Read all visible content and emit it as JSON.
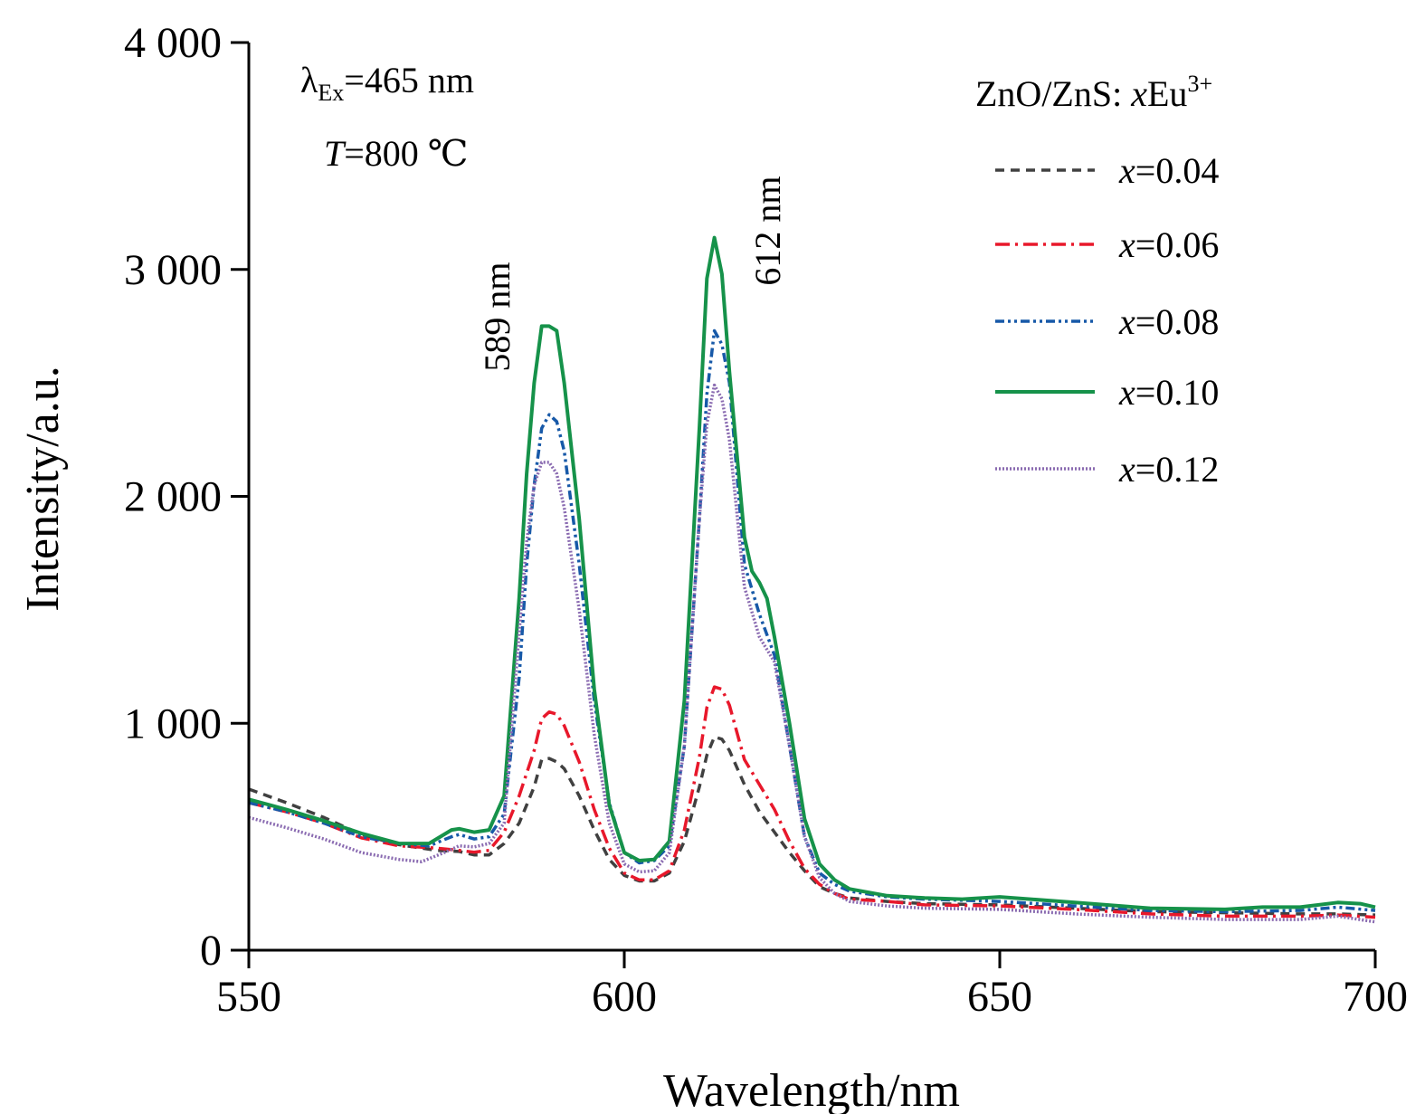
{
  "chart_data": {
    "type": "line",
    "xlabel": "Wavelength/nm",
    "ylabel": "Intensity/a.u.",
    "xlim": [
      550,
      700
    ],
    "ylim": [
      0,
      4000
    ],
    "x_ticks": [
      "550",
      "600",
      "650",
      "700"
    ],
    "y_ticks": [
      "0",
      "1 000",
      "2 000",
      "3 000",
      "4 000"
    ],
    "grid": false,
    "legend": {
      "title": "ZnO/ZnS: xEu",
      "title_sup": "3+",
      "position": "top-right"
    },
    "annotations": {
      "excitation": {
        "lambda": "λ",
        "sub": "Ex",
        "text": "=465 nm"
      },
      "temperature": {
        "symbol": "T",
        "text": "=800 ℃"
      },
      "peak1": "589 nm",
      "peak2": "612 nm"
    },
    "series": [
      {
        "name": "x=0.04",
        "prefix": "x",
        "value_label": "=0.04",
        "color": "#404040",
        "dash": "10,7",
        "points": [
          [
            550,
            710
          ],
          [
            555,
            650
          ],
          [
            560,
            585
          ],
          [
            565,
            510
          ],
          [
            570,
            465
          ],
          [
            575,
            440
          ],
          [
            578,
            435
          ],
          [
            580,
            420
          ],
          [
            582,
            420
          ],
          [
            584,
            470
          ],
          [
            586,
            560
          ],
          [
            588,
            720
          ],
          [
            589,
            840
          ],
          [
            590,
            845
          ],
          [
            591,
            830
          ],
          [
            592,
            800
          ],
          [
            594,
            680
          ],
          [
            596,
            530
          ],
          [
            598,
            400
          ],
          [
            600,
            330
          ],
          [
            602,
            305
          ],
          [
            604,
            305
          ],
          [
            606,
            340
          ],
          [
            608,
            480
          ],
          [
            610,
            720
          ],
          [
            611,
            860
          ],
          [
            612,
            940
          ],
          [
            613,
            930
          ],
          [
            614,
            880
          ],
          [
            616,
            730
          ],
          [
            618,
            610
          ],
          [
            620,
            520
          ],
          [
            622,
            430
          ],
          [
            624,
            350
          ],
          [
            626,
            280
          ],
          [
            628,
            250
          ],
          [
            630,
            230
          ],
          [
            635,
            215
          ],
          [
            640,
            205
          ],
          [
            650,
            200
          ],
          [
            660,
            185
          ],
          [
            670,
            170
          ],
          [
            680,
            165
          ],
          [
            690,
            160
          ],
          [
            695,
            160
          ],
          [
            700,
            155
          ]
        ]
      },
      {
        "name": "x=0.06",
        "prefix": "x",
        "value_label": "=0.06",
        "color": "#e8182b",
        "dash": "16,6,3,6",
        "points": [
          [
            550,
            650
          ],
          [
            555,
            610
          ],
          [
            560,
            560
          ],
          [
            565,
            495
          ],
          [
            570,
            460
          ],
          [
            575,
            450
          ],
          [
            578,
            440
          ],
          [
            580,
            432
          ],
          [
            582,
            440
          ],
          [
            584,
            520
          ],
          [
            586,
            680
          ],
          [
            588,
            880
          ],
          [
            589,
            1020
          ],
          [
            590,
            1050
          ],
          [
            591,
            1040
          ],
          [
            592,
            990
          ],
          [
            594,
            830
          ],
          [
            596,
            620
          ],
          [
            598,
            450
          ],
          [
            600,
            340
          ],
          [
            602,
            310
          ],
          [
            604,
            310
          ],
          [
            606,
            350
          ],
          [
            608,
            530
          ],
          [
            610,
            850
          ],
          [
            611,
            1070
          ],
          [
            612,
            1160
          ],
          [
            613,
            1150
          ],
          [
            614,
            1080
          ],
          [
            616,
            840
          ],
          [
            618,
            730
          ],
          [
            620,
            620
          ],
          [
            622,
            480
          ],
          [
            624,
            360
          ],
          [
            626,
            290
          ],
          [
            628,
            250
          ],
          [
            630,
            225
          ],
          [
            635,
            215
          ],
          [
            640,
            200
          ],
          [
            650,
            195
          ],
          [
            660,
            180
          ],
          [
            670,
            160
          ],
          [
            680,
            150
          ],
          [
            690,
            150
          ],
          [
            695,
            155
          ],
          [
            700,
            145
          ]
        ]
      },
      {
        "name": "x=0.08",
        "prefix": "x",
        "value_label": "=0.08",
        "color": "#1759a8",
        "dash": "10,4,3,4,3,4",
        "points": [
          [
            550,
            650
          ],
          [
            555,
            610
          ],
          [
            560,
            560
          ],
          [
            565,
            500
          ],
          [
            570,
            470
          ],
          [
            574,
            460
          ],
          [
            577,
            500
          ],
          [
            578,
            510
          ],
          [
            580,
            490
          ],
          [
            582,
            500
          ],
          [
            584,
            600
          ],
          [
            586,
            1200
          ],
          [
            587,
            1700
          ],
          [
            588,
            2050
          ],
          [
            589,
            2300
          ],
          [
            590,
            2360
          ],
          [
            591,
            2330
          ],
          [
            592,
            2200
          ],
          [
            594,
            1700
          ],
          [
            596,
            1100
          ],
          [
            598,
            650
          ],
          [
            600,
            430
          ],
          [
            602,
            385
          ],
          [
            604,
            395
          ],
          [
            606,
            460
          ],
          [
            608,
            900
          ],
          [
            610,
            1900
          ],
          [
            611,
            2450
          ],
          [
            612,
            2730
          ],
          [
            613,
            2670
          ],
          [
            614,
            2500
          ],
          [
            616,
            1700
          ],
          [
            618,
            1480
          ],
          [
            620,
            1300
          ],
          [
            622,
            900
          ],
          [
            624,
            500
          ],
          [
            626,
            340
          ],
          [
            628,
            290
          ],
          [
            630,
            260
          ],
          [
            635,
            235
          ],
          [
            640,
            225
          ],
          [
            650,
            215
          ],
          [
            660,
            195
          ],
          [
            670,
            175
          ],
          [
            680,
            170
          ],
          [
            690,
            175
          ],
          [
            695,
            190
          ],
          [
            700,
            175
          ]
        ]
      },
      {
        "name": "x=0.10",
        "prefix": "x",
        "value_label": "=0.10",
        "color": "#16924a",
        "dash": "",
        "points": [
          [
            550,
            665
          ],
          [
            555,
            620
          ],
          [
            560,
            570
          ],
          [
            565,
            515
          ],
          [
            570,
            470
          ],
          [
            574,
            470
          ],
          [
            577,
            530
          ],
          [
            578,
            535
          ],
          [
            580,
            520
          ],
          [
            582,
            530
          ],
          [
            584,
            680
          ],
          [
            586,
            1550
          ],
          [
            587,
            2100
          ],
          [
            588,
            2500
          ],
          [
            589,
            2750
          ],
          [
            590,
            2750
          ],
          [
            591,
            2730
          ],
          [
            592,
            2500
          ],
          [
            594,
            1900
          ],
          [
            596,
            1150
          ],
          [
            598,
            640
          ],
          [
            600,
            430
          ],
          [
            602,
            395
          ],
          [
            604,
            400
          ],
          [
            606,
            480
          ],
          [
            608,
            1100
          ],
          [
            610,
            2300
          ],
          [
            611,
            2960
          ],
          [
            612,
            3140
          ],
          [
            613,
            2980
          ],
          [
            614,
            2550
          ],
          [
            616,
            1820
          ],
          [
            617,
            1670
          ],
          [
            618,
            1620
          ],
          [
            619,
            1550
          ],
          [
            620,
            1380
          ],
          [
            622,
            1000
          ],
          [
            624,
            580
          ],
          [
            626,
            380
          ],
          [
            628,
            310
          ],
          [
            630,
            270
          ],
          [
            635,
            240
          ],
          [
            640,
            230
          ],
          [
            645,
            225
          ],
          [
            650,
            235
          ],
          [
            660,
            210
          ],
          [
            670,
            185
          ],
          [
            680,
            180
          ],
          [
            685,
            190
          ],
          [
            690,
            190
          ],
          [
            695,
            210
          ],
          [
            698,
            205
          ],
          [
            700,
            190
          ]
        ]
      },
      {
        "name": "x=0.12",
        "prefix": "x",
        "value_label": "=0.12",
        "color": "#8a6bb1",
        "dash": "2,2",
        "points": [
          [
            550,
            585
          ],
          [
            555,
            540
          ],
          [
            560,
            490
          ],
          [
            565,
            430
          ],
          [
            570,
            400
          ],
          [
            573,
            390
          ],
          [
            576,
            430
          ],
          [
            578,
            460
          ],
          [
            580,
            455
          ],
          [
            582,
            470
          ],
          [
            584,
            560
          ],
          [
            586,
            1400
          ],
          [
            587,
            1800
          ],
          [
            588,
            2050
          ],
          [
            589,
            2150
          ],
          [
            590,
            2150
          ],
          [
            591,
            2100
          ],
          [
            592,
            1950
          ],
          [
            594,
            1500
          ],
          [
            596,
            950
          ],
          [
            598,
            560
          ],
          [
            600,
            380
          ],
          [
            602,
            345
          ],
          [
            604,
            350
          ],
          [
            606,
            430
          ],
          [
            608,
            900
          ],
          [
            610,
            1900
          ],
          [
            611,
            2320
          ],
          [
            612,
            2490
          ],
          [
            613,
            2430
          ],
          [
            614,
            2250
          ],
          [
            616,
            1600
          ],
          [
            618,
            1380
          ],
          [
            620,
            1270
          ],
          [
            622,
            900
          ],
          [
            624,
            500
          ],
          [
            626,
            320
          ],
          [
            628,
            250
          ],
          [
            630,
            215
          ],
          [
            635,
            195
          ],
          [
            640,
            185
          ],
          [
            650,
            180
          ],
          [
            660,
            160
          ],
          [
            670,
            145
          ],
          [
            680,
            135
          ],
          [
            690,
            135
          ],
          [
            695,
            150
          ],
          [
            700,
            125
          ]
        ]
      }
    ]
  }
}
